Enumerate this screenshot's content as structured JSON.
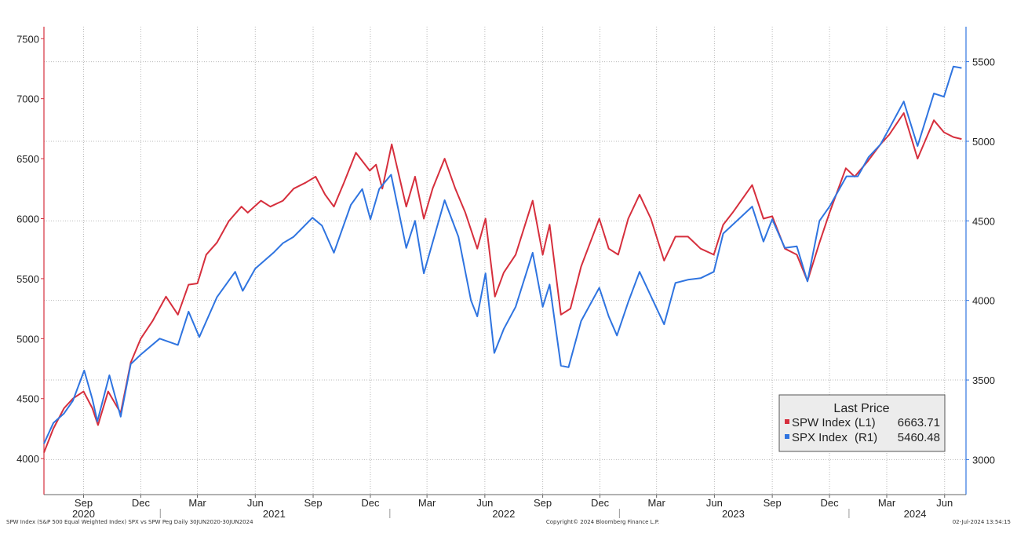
{
  "chart_data": {
    "type": "line",
    "footer_left": "SPW Index (S&P 500 Equal Weighted Index) SPX vs SPW Peg  Daily 30JUN2020-30JUN2024",
    "footer_center": "Copyright© 2024 Bloomberg Finance L.P.",
    "footer_right": "02-Jul-2024 13:54:15",
    "legend": {
      "title": "Last Price",
      "placement": "bottom-right",
      "entries": [
        {
          "name": "SPW Index",
          "axis": "(L1)",
          "value": "6663.71",
          "color": "#d62f3d"
        },
        {
          "name": "SPX Index",
          "axis": "(R1)",
          "value": "5460.48",
          "color": "#2f74e0"
        }
      ]
    },
    "left_axis": {
      "ylim": [
        3700,
        7600
      ],
      "ticks": [
        "4000",
        "4500",
        "5000",
        "5500",
        "6000",
        "6500",
        "7000",
        "7500"
      ],
      "color": "#d62f3d"
    },
    "right_axis": {
      "ylim": [
        2780,
        5720
      ],
      "ticks": [
        "3000",
        "3500",
        "4000",
        "4500",
        "5000",
        "5500"
      ],
      "color": "#2f74e0"
    },
    "x_range": [
      "2020-06-30",
      "2024-07-05"
    ],
    "month_ticks": [
      {
        "label": "Sep",
        "date": "2020-09-01"
      },
      {
        "label": "Dec",
        "date": "2020-12-01"
      },
      {
        "label": "Mar",
        "date": "2021-03-01"
      },
      {
        "label": "Jun",
        "date": "2021-06-01"
      },
      {
        "label": "Sep",
        "date": "2021-09-01"
      },
      {
        "label": "Dec",
        "date": "2021-12-01"
      },
      {
        "label": "Mar",
        "date": "2022-03-01"
      },
      {
        "label": "Jun",
        "date": "2022-06-01"
      },
      {
        "label": "Sep",
        "date": "2022-09-01"
      },
      {
        "label": "Dec",
        "date": "2022-12-01"
      },
      {
        "label": "Mar",
        "date": "2023-03-01"
      },
      {
        "label": "Jun",
        "date": "2023-06-01"
      },
      {
        "label": "Sep",
        "date": "2023-09-01"
      },
      {
        "label": "Dec",
        "date": "2023-12-01"
      },
      {
        "label": "Mar",
        "date": "2024-03-01"
      },
      {
        "label": "Jun",
        "date": "2024-06-01"
      }
    ],
    "year_labels": [
      {
        "label": "2020",
        "center": "2020-09-01"
      },
      {
        "label": "2021",
        "center": "2021-07-01"
      },
      {
        "label": "2022",
        "center": "2022-07-01"
      },
      {
        "label": "2023",
        "center": "2023-07-01"
      },
      {
        "label": "2024",
        "center": "2024-04-15"
      }
    ],
    "year_boundaries": [
      "2021-01-01",
      "2022-01-01",
      "2023-01-01",
      "2024-01-01"
    ],
    "grid": true,
    "series": [
      {
        "name": "SPW Index",
        "axis": "left",
        "color": "#d62f3d",
        "points": [
          [
            "2020-06-30",
            4050
          ],
          [
            "2020-07-15",
            4250
          ],
          [
            "2020-08-01",
            4420
          ],
          [
            "2020-08-15",
            4500
          ],
          [
            "2020-09-01",
            4560
          ],
          [
            "2020-09-15",
            4420
          ],
          [
            "2020-09-24",
            4280
          ],
          [
            "2020-10-10",
            4560
          ],
          [
            "2020-10-30",
            4380
          ],
          [
            "2020-11-15",
            4800
          ],
          [
            "2020-12-01",
            5000
          ],
          [
            "2020-12-20",
            5150
          ],
          [
            "2021-01-10",
            5350
          ],
          [
            "2021-01-29",
            5200
          ],
          [
            "2021-02-15",
            5450
          ],
          [
            "2021-03-01",
            5460
          ],
          [
            "2021-03-15",
            5700
          ],
          [
            "2021-04-01",
            5800
          ],
          [
            "2021-04-20",
            5980
          ],
          [
            "2021-05-10",
            6100
          ],
          [
            "2021-05-20",
            6050
          ],
          [
            "2021-06-10",
            6150
          ],
          [
            "2021-06-25",
            6100
          ],
          [
            "2021-07-15",
            6150
          ],
          [
            "2021-08-01",
            6250
          ],
          [
            "2021-08-20",
            6300
          ],
          [
            "2021-09-05",
            6350
          ],
          [
            "2021-09-20",
            6200
          ],
          [
            "2021-10-04",
            6100
          ],
          [
            "2021-10-20",
            6300
          ],
          [
            "2021-11-08",
            6550
          ],
          [
            "2021-11-30",
            6400
          ],
          [
            "2021-12-10",
            6450
          ],
          [
            "2021-12-20",
            6250
          ],
          [
            "2022-01-04",
            6620
          ],
          [
            "2022-01-27",
            6100
          ],
          [
            "2022-02-10",
            6350
          ],
          [
            "2022-02-24",
            6000
          ],
          [
            "2022-03-10",
            6250
          ],
          [
            "2022-03-29",
            6500
          ],
          [
            "2022-04-15",
            6250
          ],
          [
            "2022-05-01",
            6050
          ],
          [
            "2022-05-20",
            5750
          ],
          [
            "2022-06-02",
            6000
          ],
          [
            "2022-06-17",
            5350
          ],
          [
            "2022-07-01",
            5550
          ],
          [
            "2022-07-20",
            5700
          ],
          [
            "2022-08-16",
            6150
          ],
          [
            "2022-09-01",
            5700
          ],
          [
            "2022-09-12",
            5950
          ],
          [
            "2022-09-30",
            5200
          ],
          [
            "2022-10-15",
            5250
          ],
          [
            "2022-11-01",
            5600
          ],
          [
            "2022-11-30",
            6000
          ],
          [
            "2022-12-15",
            5750
          ],
          [
            "2022-12-30",
            5700
          ],
          [
            "2023-01-15",
            6000
          ],
          [
            "2023-02-02",
            6200
          ],
          [
            "2023-02-20",
            6000
          ],
          [
            "2023-03-13",
            5650
          ],
          [
            "2023-03-31",
            5850
          ],
          [
            "2023-04-20",
            5850
          ],
          [
            "2023-05-10",
            5750
          ],
          [
            "2023-05-31",
            5700
          ],
          [
            "2023-06-15",
            5950
          ],
          [
            "2023-06-30",
            6050
          ],
          [
            "2023-07-31",
            6280
          ],
          [
            "2023-08-18",
            6000
          ],
          [
            "2023-09-01",
            6020
          ],
          [
            "2023-09-21",
            5750
          ],
          [
            "2023-10-10",
            5700
          ],
          [
            "2023-10-27",
            5480
          ],
          [
            "2023-11-15",
            5800
          ],
          [
            "2023-12-01",
            6050
          ],
          [
            "2023-12-27",
            6420
          ],
          [
            "2024-01-10",
            6350
          ],
          [
            "2024-01-31",
            6480
          ],
          [
            "2024-02-20",
            6620
          ],
          [
            "2024-03-05",
            6700
          ],
          [
            "2024-03-28",
            6880
          ],
          [
            "2024-04-19",
            6500
          ],
          [
            "2024-05-15",
            6820
          ],
          [
            "2024-05-31",
            6720
          ],
          [
            "2024-06-15",
            6680
          ],
          [
            "2024-06-28",
            6663.71
          ]
        ]
      },
      {
        "name": "SPX Index",
        "axis": "right",
        "color": "#2f74e0",
        "points": [
          [
            "2020-06-30",
            3100
          ],
          [
            "2020-07-15",
            3230
          ],
          [
            "2020-08-01",
            3290
          ],
          [
            "2020-08-15",
            3370
          ],
          [
            "2020-09-02",
            3560
          ],
          [
            "2020-09-15",
            3380
          ],
          [
            "2020-09-23",
            3240
          ],
          [
            "2020-10-12",
            3530
          ],
          [
            "2020-10-30",
            3270
          ],
          [
            "2020-11-15",
            3600
          ],
          [
            "2020-12-01",
            3660
          ],
          [
            "2020-12-31",
            3760
          ],
          [
            "2021-01-29",
            3720
          ],
          [
            "2021-02-15",
            3930
          ],
          [
            "2021-03-04",
            3770
          ],
          [
            "2021-04-01",
            4020
          ],
          [
            "2021-04-30",
            4180
          ],
          [
            "2021-05-12",
            4060
          ],
          [
            "2021-06-01",
            4200
          ],
          [
            "2021-06-30",
            4300
          ],
          [
            "2021-07-15",
            4360
          ],
          [
            "2021-08-01",
            4400
          ],
          [
            "2021-08-31",
            4520
          ],
          [
            "2021-09-15",
            4470
          ],
          [
            "2021-10-04",
            4300
          ],
          [
            "2021-10-31",
            4600
          ],
          [
            "2021-11-18",
            4700
          ],
          [
            "2021-12-01",
            4510
          ],
          [
            "2021-12-15",
            4700
          ],
          [
            "2022-01-03",
            4790
          ],
          [
            "2022-01-27",
            4330
          ],
          [
            "2022-02-10",
            4500
          ],
          [
            "2022-02-24",
            4170
          ],
          [
            "2022-03-29",
            4630
          ],
          [
            "2022-04-20",
            4400
          ],
          [
            "2022-05-10",
            4000
          ],
          [
            "2022-05-20",
            3900
          ],
          [
            "2022-06-02",
            4170
          ],
          [
            "2022-06-16",
            3670
          ],
          [
            "2022-07-01",
            3820
          ],
          [
            "2022-07-20",
            3960
          ],
          [
            "2022-08-16",
            4300
          ],
          [
            "2022-09-01",
            3960
          ],
          [
            "2022-09-12",
            4100
          ],
          [
            "2022-09-30",
            3590
          ],
          [
            "2022-10-12",
            3580
          ],
          [
            "2022-11-01",
            3870
          ],
          [
            "2022-11-30",
            4080
          ],
          [
            "2022-12-15",
            3900
          ],
          [
            "2022-12-28",
            3780
          ],
          [
            "2023-01-15",
            3990
          ],
          [
            "2023-02-02",
            4180
          ],
          [
            "2023-03-13",
            3850
          ],
          [
            "2023-03-31",
            4110
          ],
          [
            "2023-04-20",
            4130
          ],
          [
            "2023-05-10",
            4140
          ],
          [
            "2023-05-31",
            4180
          ],
          [
            "2023-06-15",
            4420
          ],
          [
            "2023-07-31",
            4590
          ],
          [
            "2023-08-18",
            4370
          ],
          [
            "2023-09-01",
            4510
          ],
          [
            "2023-09-21",
            4330
          ],
          [
            "2023-10-10",
            4340
          ],
          [
            "2023-10-27",
            4120
          ],
          [
            "2023-11-15",
            4500
          ],
          [
            "2023-12-01",
            4590
          ],
          [
            "2023-12-28",
            4780
          ],
          [
            "2024-01-15",
            4780
          ],
          [
            "2024-02-01",
            4900
          ],
          [
            "2024-02-20",
            4980
          ],
          [
            "2024-03-05",
            5080
          ],
          [
            "2024-03-28",
            5250
          ],
          [
            "2024-04-19",
            4970
          ],
          [
            "2024-05-15",
            5300
          ],
          [
            "2024-05-31",
            5280
          ],
          [
            "2024-06-15",
            5470
          ],
          [
            "2024-06-28",
            5460.48
          ]
        ]
      }
    ]
  }
}
